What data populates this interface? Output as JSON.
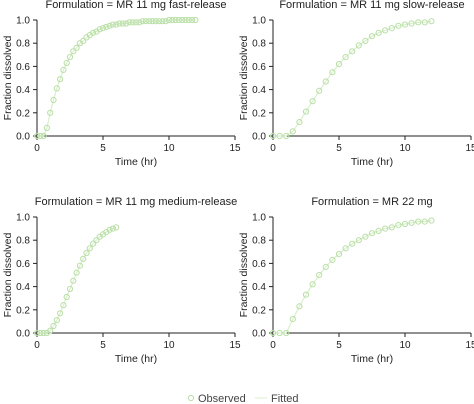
{
  "chart_data": [
    {
      "type": "scatter",
      "title": "Formulation = MR 11 mg fast-release",
      "xlabel": "Time (hr)",
      "ylabel": "Fraction dissolved",
      "xlim": [
        0,
        15
      ],
      "ylim": [
        0,
        1.0
      ],
      "xticks": [
        "0",
        "5",
        "10",
        "15"
      ],
      "yticks": [
        "0.0",
        "0.2",
        "0.4",
        "0.6",
        "0.8",
        "1.0"
      ],
      "series": [
        {
          "name": "Observed",
          "style": "circle",
          "t_end": 12,
          "lag": 0.5,
          "k": 0.78,
          "p": 1.0
        },
        {
          "name": "Fitted",
          "style": "line",
          "t_end": 12,
          "lag": 0.5,
          "k": 0.78,
          "p": 1.0
        }
      ],
      "x": [
        0,
        0.25,
        0.5,
        0.75,
        1,
        1.25,
        1.5,
        1.75,
        2,
        2.25,
        2.5,
        2.75,
        3,
        3.25,
        3.5,
        3.75,
        4,
        4.25,
        4.5,
        4.75,
        5,
        5.25,
        5.5,
        5.75,
        6,
        6.25,
        6.5,
        6.75,
        7,
        7.25,
        7.5,
        7.75,
        8,
        8.25,
        8.5,
        8.75,
        9,
        9.25,
        9.5,
        9.75,
        10,
        10.25,
        10.5,
        10.75,
        11,
        11.25,
        11.5,
        11.75,
        12
      ],
      "y": [
        0,
        0,
        0,
        0.07,
        0.2,
        0.31,
        0.41,
        0.49,
        0.57,
        0.63,
        0.68,
        0.73,
        0.76,
        0.8,
        0.82,
        0.85,
        0.87,
        0.89,
        0.9,
        0.92,
        0.93,
        0.94,
        0.95,
        0.96,
        0.96,
        0.97,
        0.97,
        0.97,
        0.98,
        0.98,
        0.98,
        0.98,
        0.99,
        0.99,
        0.99,
        0.99,
        0.99,
        0.99,
        0.99,
        0.99,
        1.0,
        1.0,
        1.0,
        1.0,
        1.0,
        1.0,
        1.0,
        1.0,
        1.0
      ]
    },
    {
      "type": "scatter",
      "title": "Formulation = MR 11 mg slow-release",
      "xlabel": "Time (hr)",
      "ylabel": "Fraction dissolved",
      "xlim": [
        0,
        15
      ],
      "ylim": [
        0,
        1.0
      ],
      "xticks": [
        "0",
        "5",
        "10",
        "15"
      ],
      "yticks": [
        "0.0",
        "0.2",
        "0.4",
        "0.6",
        "0.8",
        "1.0"
      ],
      "series": [
        {
          "name": "Observed",
          "style": "circle",
          "t_end": 12,
          "lag": 1.0,
          "k": 0.12,
          "p": 1.5
        },
        {
          "name": "Fitted",
          "style": "line",
          "t_end": 12,
          "lag": 1.0,
          "k": 0.12,
          "p": 1.5
        }
      ],
      "x": [
        0,
        0.5,
        1,
        1.5,
        2,
        2.5,
        3,
        3.5,
        4,
        4.5,
        5,
        5.5,
        6,
        6.5,
        7,
        7.5,
        8,
        8.5,
        9,
        9.5,
        10,
        10.5,
        11,
        11.5,
        12
      ],
      "y": [
        0,
        0,
        0,
        0.04,
        0.12,
        0.21,
        0.3,
        0.39,
        0.47,
        0.55,
        0.62,
        0.68,
        0.73,
        0.78,
        0.82,
        0.86,
        0.89,
        0.91,
        0.93,
        0.95,
        0.96,
        0.97,
        0.98,
        0.98,
        0.99
      ]
    },
    {
      "type": "scatter",
      "title": "Formulation = MR 11 mg medium-release",
      "xlabel": "Time (hr)",
      "ylabel": "Fraction dissolved",
      "xlim": [
        0,
        15
      ],
      "ylim": [
        0,
        1.0
      ],
      "xticks": [
        "0",
        "5",
        "10",
        "15"
      ],
      "yticks": [
        "0.0",
        "0.2",
        "0.4",
        "0.6",
        "0.8",
        "1.0"
      ],
      "series": [
        {
          "name": "Observed",
          "style": "circle",
          "t_end": 6,
          "lag": 0.8,
          "k": 0.15,
          "p": 1.65
        },
        {
          "name": "Fitted",
          "style": "line",
          "t_end": 6,
          "lag": 0.8,
          "k": 0.15,
          "p": 1.65
        }
      ],
      "x": [
        0,
        0.25,
        0.5,
        0.75,
        1,
        1.25,
        1.5,
        1.75,
        2,
        2.25,
        2.5,
        2.75,
        3,
        3.25,
        3.5,
        3.75,
        4,
        4.25,
        4.5,
        4.75,
        5,
        5.25,
        5.5,
        5.75,
        6
      ],
      "y": [
        0,
        0,
        0,
        0,
        0.02,
        0.06,
        0.11,
        0.17,
        0.24,
        0.31,
        0.38,
        0.45,
        0.52,
        0.58,
        0.64,
        0.69,
        0.73,
        0.77,
        0.8,
        0.83,
        0.85,
        0.87,
        0.89,
        0.9,
        0.91
      ]
    },
    {
      "type": "scatter",
      "title": "Formulation = MR 22 mg",
      "xlabel": "Time (hr)",
      "ylabel": "Fraction dissolved",
      "xlim": [
        0,
        15
      ],
      "ylim": [
        0,
        1.0
      ],
      "xticks": [
        "0",
        "5",
        "10",
        "15"
      ],
      "yticks": [
        "0.0",
        "0.2",
        "0.4",
        "0.6",
        "0.8",
        "1.0"
      ],
      "series": [
        {
          "name": "Observed",
          "style": "circle",
          "t_end": 12,
          "lag": 1.0,
          "k": 0.26,
          "p": 1.05
        },
        {
          "name": "Fitted",
          "style": "line",
          "t_end": 12,
          "lag": 1.0,
          "k": 0.26,
          "p": 1.05
        }
      ],
      "x": [
        0,
        0.5,
        1,
        1.5,
        2,
        2.5,
        3,
        3.5,
        4,
        4.5,
        5,
        5.5,
        6,
        6.5,
        7,
        7.5,
        8,
        8.5,
        9,
        9.5,
        10,
        10.5,
        11,
        11.5,
        12
      ],
      "y": [
        0,
        0,
        0,
        0.12,
        0.23,
        0.33,
        0.42,
        0.5,
        0.57,
        0.63,
        0.68,
        0.73,
        0.77,
        0.8,
        0.83,
        0.86,
        0.88,
        0.9,
        0.91,
        0.93,
        0.94,
        0.95,
        0.96,
        0.96,
        0.97
      ]
    }
  ],
  "legend": {
    "observed_label": "Observed",
    "fitted_label": "Fitted",
    "placement": "bottom-center"
  },
  "colors": {
    "observed": "#b9dfa6",
    "fitted": "#d9efcc",
    "axis": "#222222"
  }
}
